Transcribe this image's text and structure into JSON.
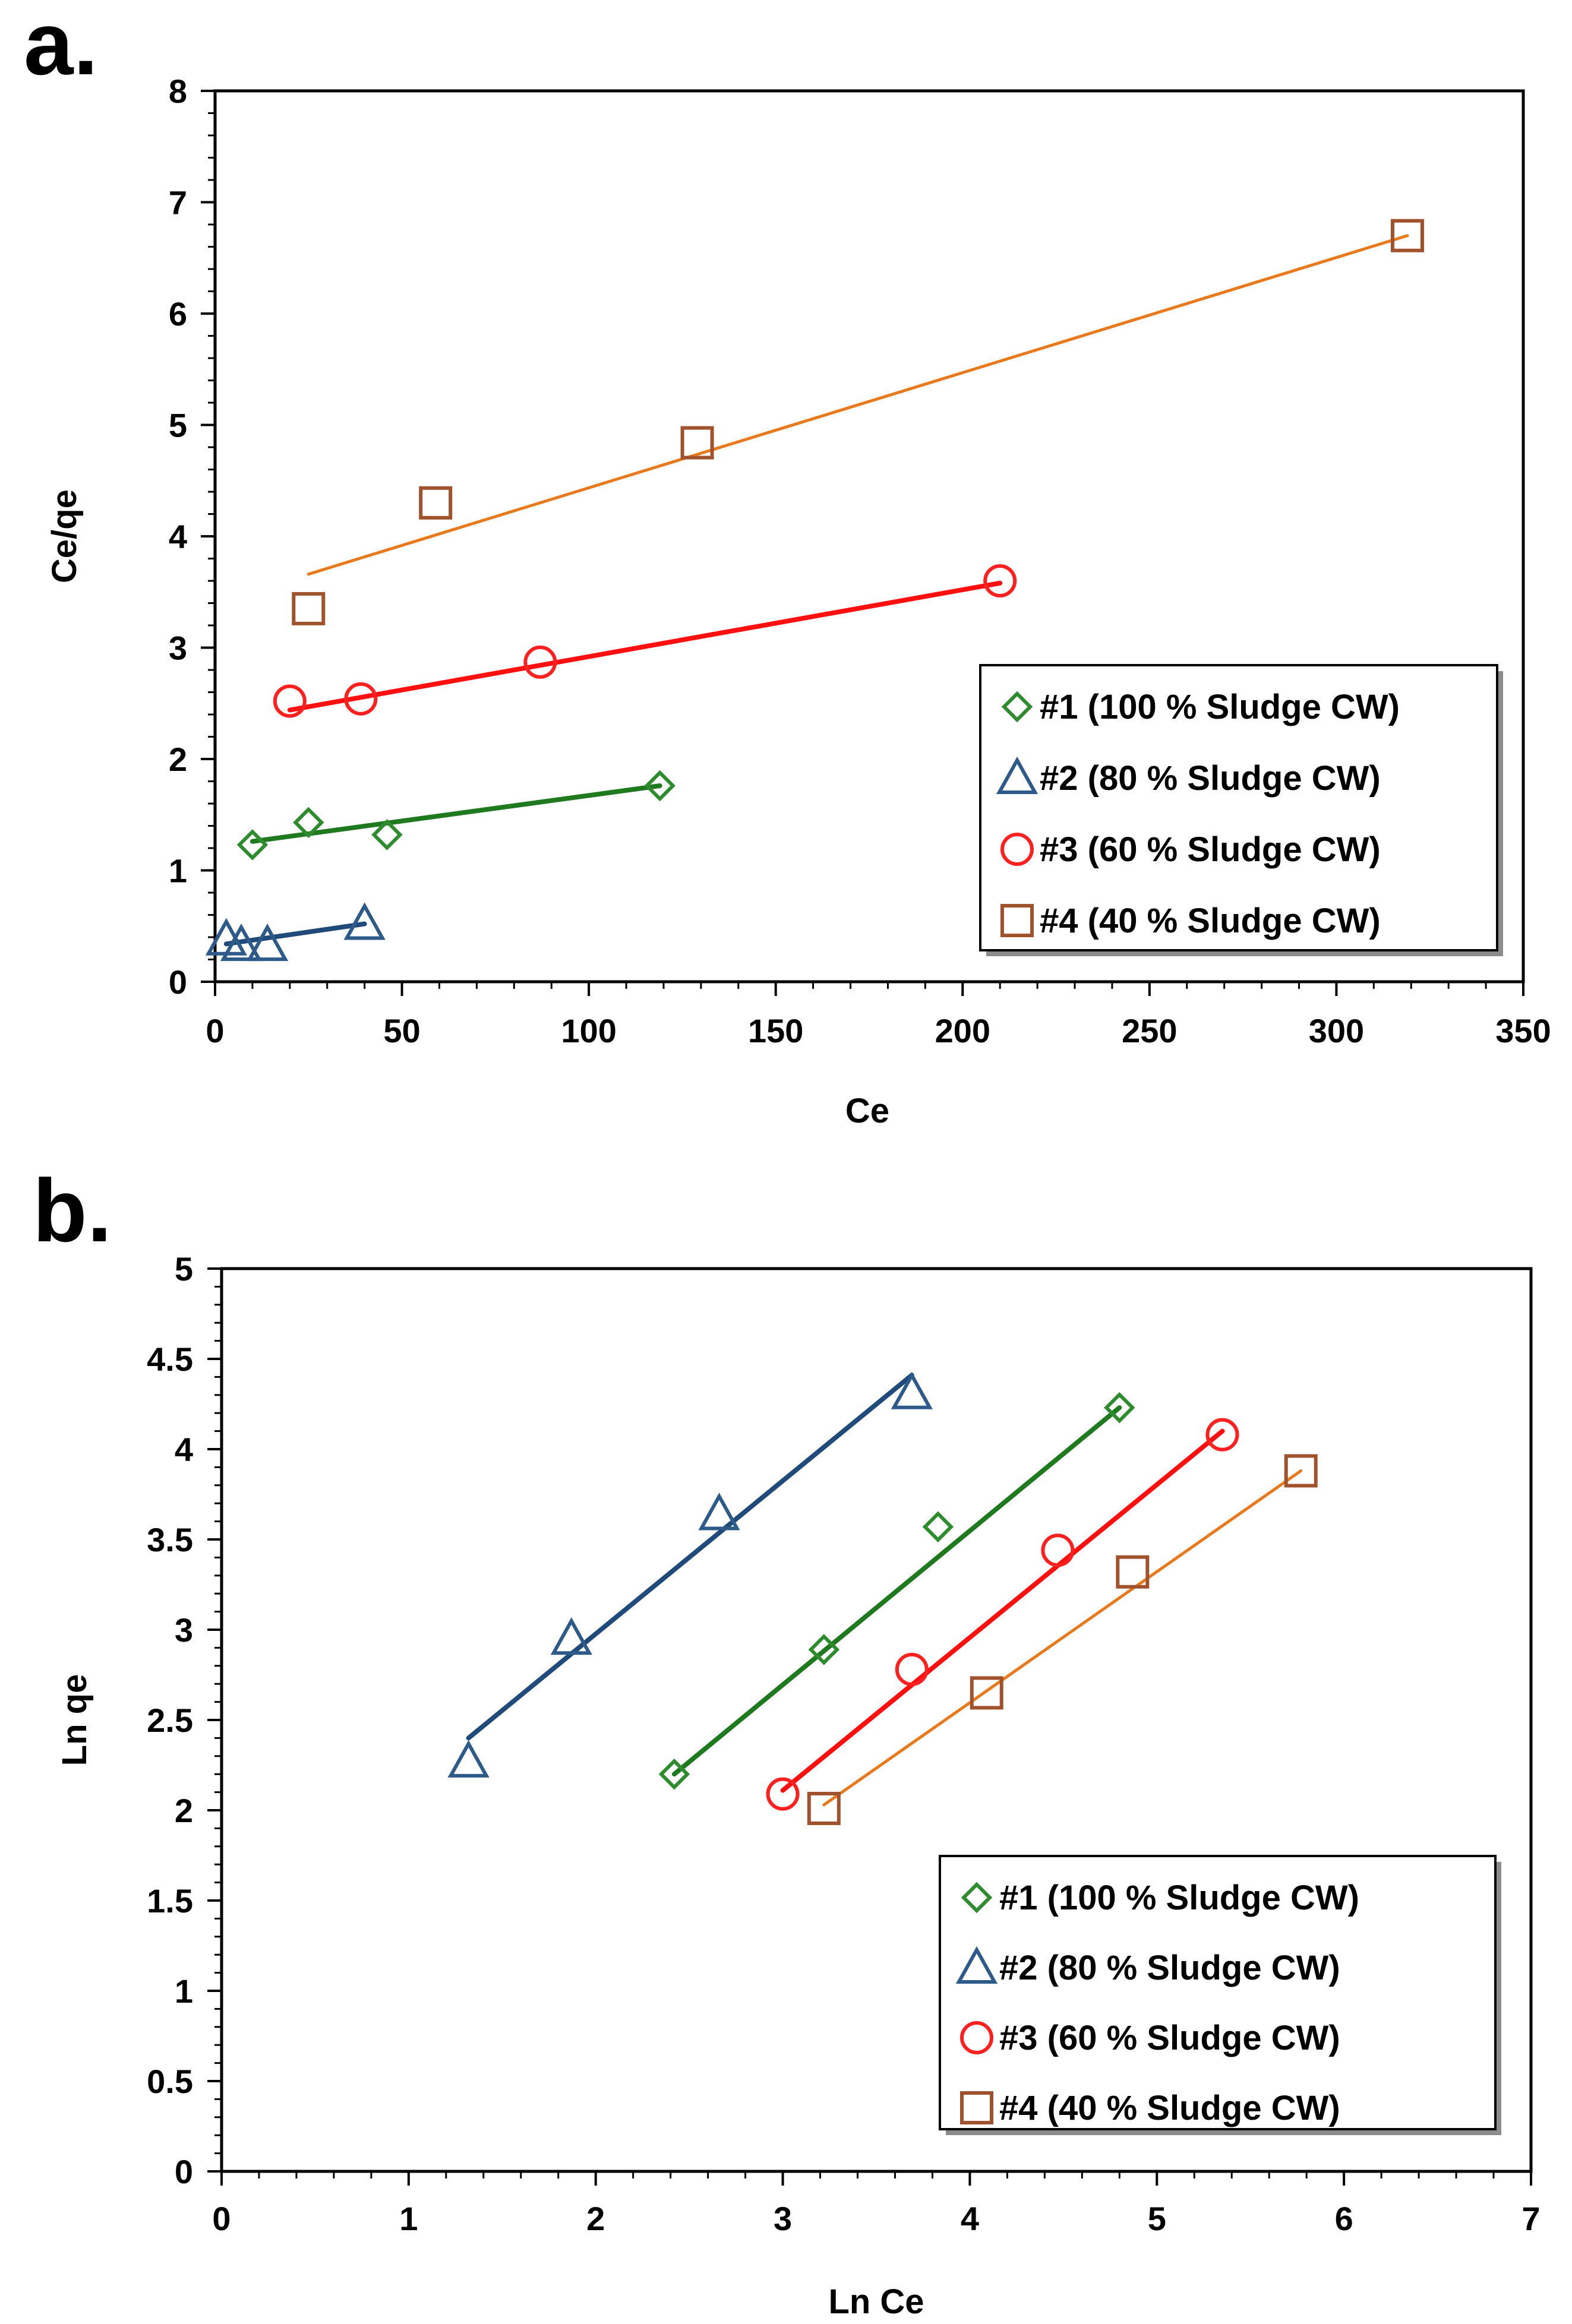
{
  "chart_data": [
    {
      "panel_label": "a.",
      "type": "scatter",
      "xlabel": "Ce",
      "ylabel": "Ce/qe",
      "xlim": [
        0,
        350
      ],
      "ylim": [
        0,
        8
      ],
      "xticks": [
        0,
        50,
        100,
        150,
        200,
        250,
        300,
        350
      ],
      "yticks": [
        0,
        1,
        2,
        3,
        4,
        5,
        6,
        7,
        8
      ],
      "legend_position": "bottom-right",
      "series": [
        {
          "name": "#1 (100 % Sludge CW)",
          "marker": "diamond",
          "color": "#2e8b2e",
          "line_color": "#1f7a1f",
          "x": [
            10,
            25,
            46,
            119
          ],
          "y": [
            1.23,
            1.43,
            1.32,
            1.76
          ],
          "fit": [
            [
              10,
              1.26
            ],
            [
              119,
              1.76
            ]
          ]
        },
        {
          "name": "#2 (80 % Sludge CW)",
          "marker": "triangle",
          "color": "#2e5a8a",
          "line_color": "#1f4a7a",
          "x": [
            3,
            7,
            14,
            40
          ],
          "y": [
            0.38,
            0.33,
            0.33,
            0.52
          ],
          "fit": [
            [
              3,
              0.34
            ],
            [
              40,
              0.52
            ]
          ]
        },
        {
          "name": "#3 (60 % Sludge CW)",
          "marker": "circle",
          "color": "#ff2020",
          "line_color": "#ff1010",
          "x": [
            20,
            39,
            87,
            210
          ],
          "y": [
            2.52,
            2.54,
            2.87,
            3.6
          ],
          "fit": [
            [
              20,
              2.44
            ],
            [
              210,
              3.58
            ]
          ]
        },
        {
          "name": "#4 (40 % Sludge CW)",
          "marker": "square",
          "color": "#a0522d",
          "line_color": "#e8791c",
          "x": [
            25,
            59,
            129,
            319
          ],
          "y": [
            3.35,
            4.3,
            4.84,
            6.7
          ],
          "fit": [
            [
              25,
              3.66
            ],
            [
              319,
              6.7
            ]
          ]
        }
      ]
    },
    {
      "panel_label": "b.",
      "type": "scatter",
      "xlabel": "Ln Ce",
      "ylabel": "Ln qe",
      "xlim": [
        0,
        7
      ],
      "ylim": [
        0,
        5
      ],
      "xticks": [
        0,
        1,
        2,
        3,
        4,
        5,
        6,
        7
      ],
      "yticks": [
        0,
        0.5,
        1,
        1.5,
        2,
        2.5,
        3,
        3.5,
        4,
        4.5,
        5
      ],
      "legend_position": "bottom-right",
      "series": [
        {
          "name": "#1 (100 % Sludge CW)",
          "marker": "diamond",
          "color": "#2e8b2e",
          "line_color": "#1f7a1f",
          "x": [
            2.42,
            3.22,
            3.83,
            4.8
          ],
          "y": [
            2.2,
            2.89,
            3.57,
            4.23
          ],
          "fit": [
            [
              2.42,
              2.2
            ],
            [
              4.8,
              4.23
            ]
          ]
        },
        {
          "name": "#2 (80 % Sludge CW)",
          "marker": "triangle",
          "color": "#2e5a8a",
          "line_color": "#1f4a7a",
          "x": [
            1.32,
            1.87,
            2.66,
            3.69
          ],
          "y": [
            2.27,
            2.95,
            3.64,
            4.31
          ],
          "fit": [
            [
              1.32,
              2.4
            ],
            [
              3.69,
              4.41
            ]
          ]
        },
        {
          "name": "#3 (60 % Sludge CW)",
          "marker": "circle",
          "color": "#ff2020",
          "line_color": "#ff1010",
          "x": [
            3.0,
            3.69,
            4.47,
            5.35
          ],
          "y": [
            2.09,
            2.78,
            3.44,
            4.08
          ],
          "fit": [
            [
              3.0,
              2.11
            ],
            [
              5.35,
              4.1
            ]
          ]
        },
        {
          "name": "#4 (40 % Sludge CW)",
          "marker": "square",
          "color": "#a0522d",
          "line_color": "#e8791c",
          "x": [
            3.22,
            4.09,
            4.87,
            5.77
          ],
          "y": [
            2.01,
            2.65,
            3.32,
            3.88
          ],
          "fit": [
            [
              3.22,
              2.03
            ],
            [
              5.77,
              3.88
            ]
          ]
        }
      ]
    }
  ]
}
